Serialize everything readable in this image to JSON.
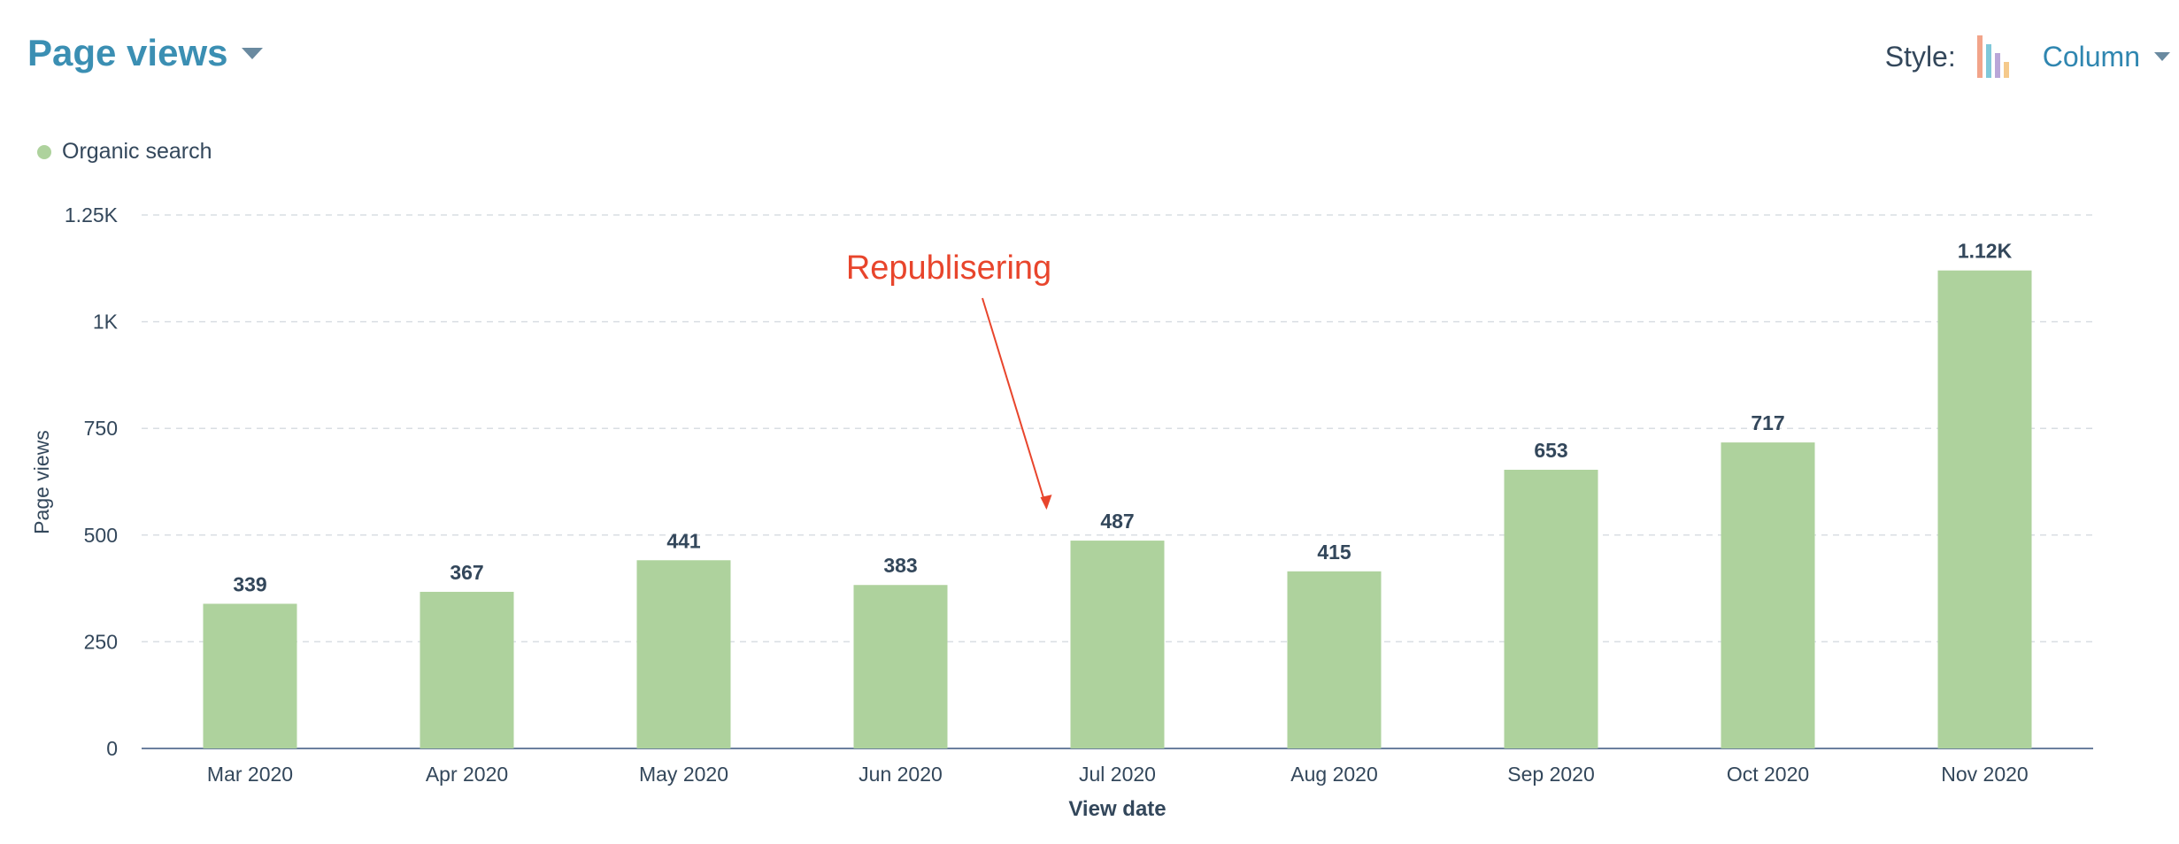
{
  "header": {
    "metric_title": "Page views",
    "style_label": "Style:",
    "style_value": "Column"
  },
  "legend": {
    "items": [
      {
        "label": "Organic search",
        "color": "#aed29d"
      }
    ]
  },
  "chart_data": {
    "type": "bar",
    "categories": [
      "Mar 2020",
      "Apr 2020",
      "May 2020",
      "Jun 2020",
      "Jul 2020",
      "Aug 2020",
      "Sep 2020",
      "Oct 2020",
      "Nov 2020"
    ],
    "series": [
      {
        "name": "Organic search",
        "values": [
          339,
          367,
          441,
          383,
          487,
          415,
          653,
          717,
          1120
        ],
        "color": "#aed29d"
      }
    ],
    "data_labels": [
      "339",
      "367",
      "441",
      "383",
      "487",
      "415",
      "653",
      "717",
      "1.12K"
    ],
    "xlabel": "View date",
    "ylabel": "Page views",
    "ylim": [
      0,
      1250
    ],
    "yticks": [
      0,
      250,
      500,
      750,
      1000,
      1250
    ],
    "ytick_labels": [
      "0",
      "250",
      "500",
      "750",
      "1K",
      "1.25K"
    ],
    "grid": true,
    "annotation": {
      "text": "Republisering",
      "target_category": "Jul 2020",
      "color": "#e8452c"
    }
  }
}
